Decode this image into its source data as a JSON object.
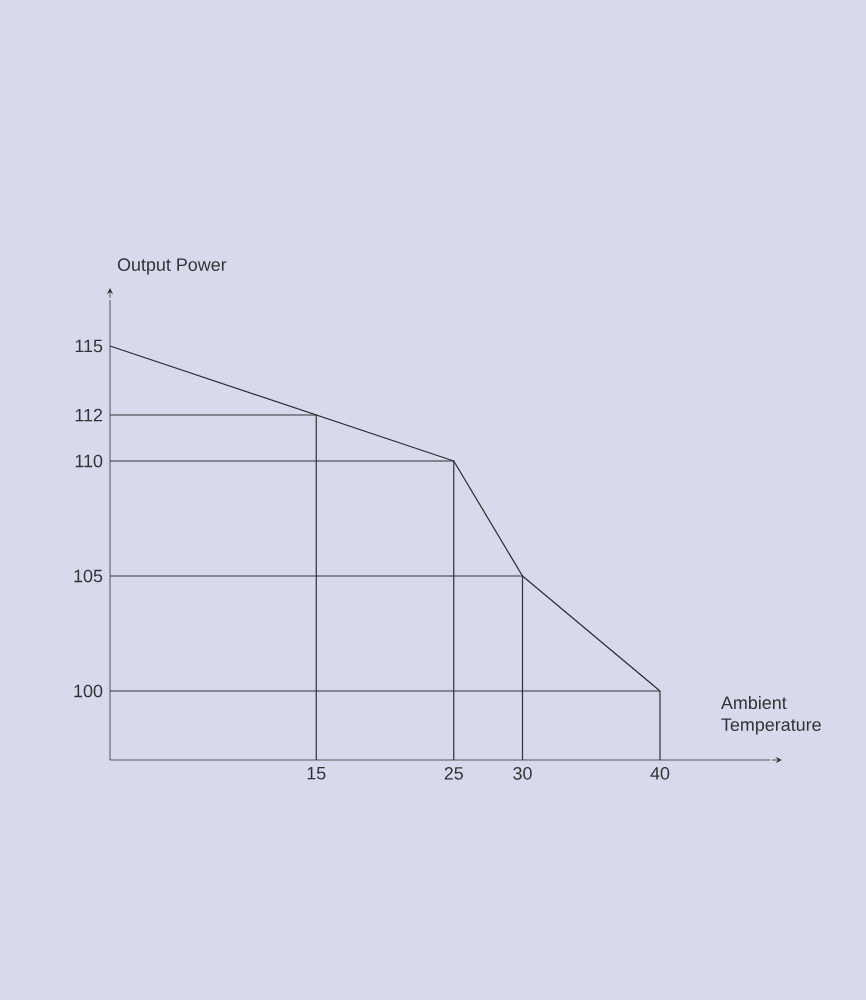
{
  "chart_data": {
    "type": "line",
    "xlabel": "Ambient Temperature",
    "ylabel": "Output Power",
    "x": [
      0,
      15,
      25,
      30,
      40
    ],
    "series": [
      {
        "color": "#2b2b2b",
        "values": [
          115,
          112,
          110,
          105,
          100
        ]
      },
      {
        "color": "#333333",
        "x": [
          0,
          15,
          15
        ],
        "values": [
          112,
          112,
          97
        ]
      },
      {
        "color": "#333333",
        "x": [
          0,
          25,
          25
        ],
        "values": [
          110,
          110,
          97
        ]
      },
      {
        "color": "#333333",
        "x": [
          0,
          30,
          30
        ],
        "values": [
          105,
          105,
          97
        ]
      },
      {
        "color": "#333333",
        "x": [
          0,
          40,
          40
        ],
        "values": [
          100,
          100,
          97
        ]
      }
    ],
    "xlim": [
      0,
      48
    ],
    "ylim": [
      97,
      117
    ],
    "xticks": [
      15,
      25,
      30,
      40
    ],
    "yticks": [
      100,
      105,
      110,
      112,
      115
    ],
    "grid": false,
    "marker": "none",
    "line_style": "solid"
  }
}
